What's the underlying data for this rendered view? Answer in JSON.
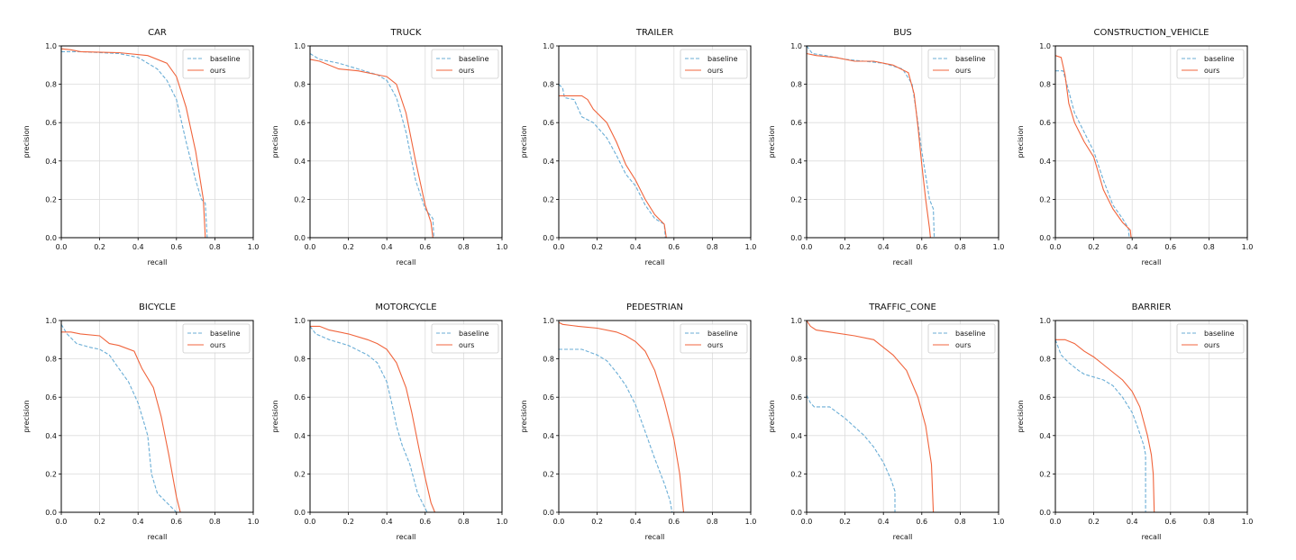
{
  "chart_data": [
    {
      "type": "line",
      "title": "CAR",
      "xlabel": "recall",
      "ylabel": "precision",
      "xlim": [
        0,
        1
      ],
      "ylim": [
        0,
        1
      ],
      "grid": true,
      "legend": "top-right",
      "series": [
        {
          "name": "baseline",
          "color": "#6baed6",
          "style": "dashed",
          "x": [
            0,
            0.1,
            0.3,
            0.4,
            0.5,
            0.55,
            0.6,
            0.65,
            0.7,
            0.73,
            0.75,
            0.76
          ],
          "y": [
            0.97,
            0.97,
            0.96,
            0.94,
            0.88,
            0.82,
            0.72,
            0.5,
            0.3,
            0.2,
            0.18,
            0
          ]
        },
        {
          "name": "ours",
          "color": "#f0643c",
          "style": "solid",
          "x": [
            0,
            0.05,
            0.1,
            0.3,
            0.45,
            0.55,
            0.6,
            0.65,
            0.7,
            0.74,
            0.75
          ],
          "y": [
            0.985,
            0.98,
            0.97,
            0.965,
            0.95,
            0.91,
            0.84,
            0.68,
            0.45,
            0.2,
            0
          ]
        }
      ]
    },
    {
      "type": "line",
      "title": "TRUCK",
      "xlabel": "recall",
      "ylabel": "precision",
      "xlim": [
        0,
        1
      ],
      "ylim": [
        0,
        1
      ],
      "grid": true,
      "legend": "top-right",
      "series": [
        {
          "name": "baseline",
          "color": "#6baed6",
          "style": "dashed",
          "x": [
            0,
            0.05,
            0.15,
            0.25,
            0.35,
            0.4,
            0.45,
            0.5,
            0.55,
            0.6,
            0.64,
            0.645
          ],
          "y": [
            0.96,
            0.93,
            0.91,
            0.88,
            0.85,
            0.82,
            0.73,
            0.55,
            0.3,
            0.15,
            0.1,
            0
          ]
        },
        {
          "name": "ours",
          "color": "#f0643c",
          "style": "solid",
          "x": [
            0,
            0.05,
            0.15,
            0.25,
            0.35,
            0.4,
            0.45,
            0.5,
            0.55,
            0.6,
            0.63,
            0.64
          ],
          "y": [
            0.93,
            0.92,
            0.88,
            0.87,
            0.85,
            0.84,
            0.8,
            0.65,
            0.4,
            0.17,
            0.08,
            0
          ]
        }
      ]
    },
    {
      "type": "line",
      "title": "TRAILER",
      "xlabel": "recall",
      "ylabel": "precision",
      "xlim": [
        0,
        1
      ],
      "ylim": [
        0,
        1
      ],
      "grid": true,
      "legend": "top-right",
      "series": [
        {
          "name": "baseline",
          "color": "#6baed6",
          "style": "dashed",
          "x": [
            0,
            0.02,
            0.03,
            0.08,
            0.12,
            0.18,
            0.25,
            0.3,
            0.35,
            0.4,
            0.45,
            0.5,
            0.55,
            0.555
          ],
          "y": [
            0.8,
            0.78,
            0.73,
            0.72,
            0.63,
            0.6,
            0.52,
            0.43,
            0.33,
            0.27,
            0.17,
            0.1,
            0.07,
            0
          ]
        },
        {
          "name": "ours",
          "color": "#f0643c",
          "style": "solid",
          "x": [
            0,
            0.12,
            0.15,
            0.18,
            0.25,
            0.3,
            0.35,
            0.4,
            0.45,
            0.5,
            0.55,
            0.56
          ],
          "y": [
            0.74,
            0.74,
            0.72,
            0.67,
            0.6,
            0.5,
            0.38,
            0.3,
            0.2,
            0.12,
            0.07,
            0
          ]
        }
      ]
    },
    {
      "type": "line",
      "title": "BUS",
      "xlabel": "recall",
      "ylabel": "precision",
      "xlim": [
        0,
        1
      ],
      "ylim": [
        0,
        1
      ],
      "grid": true,
      "legend": "top-right",
      "series": [
        {
          "name": "baseline",
          "color": "#6baed6",
          "style": "dashed",
          "x": [
            0,
            0.03,
            0.1,
            0.2,
            0.3,
            0.4,
            0.5,
            0.55,
            0.58,
            0.6,
            0.64,
            0.66,
            0.665
          ],
          "y": [
            1.0,
            0.96,
            0.95,
            0.93,
            0.92,
            0.91,
            0.88,
            0.8,
            0.6,
            0.45,
            0.2,
            0.15,
            0
          ]
        },
        {
          "name": "ours",
          "color": "#f0643c",
          "style": "solid",
          "x": [
            0,
            0.05,
            0.15,
            0.25,
            0.35,
            0.45,
            0.53,
            0.56,
            0.58,
            0.6,
            0.62,
            0.64,
            0.645
          ],
          "y": [
            0.96,
            0.95,
            0.94,
            0.92,
            0.92,
            0.9,
            0.86,
            0.75,
            0.58,
            0.38,
            0.2,
            0.05,
            0
          ]
        }
      ]
    },
    {
      "type": "line",
      "title": "CONSTRUCTION_VEHICLE",
      "xlabel": "recall",
      "ylabel": "precision",
      "xlim": [
        0,
        1
      ],
      "ylim": [
        0,
        1
      ],
      "grid": true,
      "legend": "top-right",
      "series": [
        {
          "name": "baseline",
          "color": "#6baed6",
          "style": "dashed",
          "x": [
            0,
            0.04,
            0.06,
            0.1,
            0.15,
            0.2,
            0.25,
            0.3,
            0.35,
            0.38,
            0.385
          ],
          "y": [
            0.87,
            0.87,
            0.8,
            0.65,
            0.55,
            0.45,
            0.3,
            0.17,
            0.1,
            0.05,
            0
          ]
        },
        {
          "name": "ours",
          "color": "#f0643c",
          "style": "solid",
          "x": [
            0,
            0.03,
            0.05,
            0.07,
            0.1,
            0.15,
            0.2,
            0.25,
            0.3,
            0.35,
            0.39,
            0.395
          ],
          "y": [
            0.95,
            0.94,
            0.85,
            0.7,
            0.6,
            0.5,
            0.42,
            0.25,
            0.15,
            0.08,
            0.04,
            0
          ]
        }
      ]
    },
    {
      "type": "line",
      "title": "BICYCLE",
      "xlabel": "recall",
      "ylabel": "precision",
      "xlim": [
        0,
        1
      ],
      "ylim": [
        0,
        1
      ],
      "grid": true,
      "legend": "top-right",
      "series": [
        {
          "name": "baseline",
          "color": "#6baed6",
          "style": "dashed",
          "x": [
            0,
            0.03,
            0.08,
            0.15,
            0.2,
            0.25,
            0.3,
            0.35,
            0.4,
            0.43,
            0.45,
            0.47,
            0.5,
            0.55,
            0.6
          ],
          "y": [
            0.98,
            0.93,
            0.88,
            0.86,
            0.85,
            0.82,
            0.75,
            0.68,
            0.57,
            0.47,
            0.4,
            0.2,
            0.1,
            0.05,
            0
          ]
        },
        {
          "name": "ours",
          "color": "#f0643c",
          "style": "solid",
          "x": [
            0,
            0.05,
            0.1,
            0.2,
            0.25,
            0.3,
            0.38,
            0.42,
            0.48,
            0.52,
            0.56,
            0.6,
            0.62
          ],
          "y": [
            0.94,
            0.94,
            0.93,
            0.92,
            0.88,
            0.87,
            0.84,
            0.75,
            0.65,
            0.5,
            0.3,
            0.08,
            0
          ]
        }
      ]
    },
    {
      "type": "line",
      "title": "MOTORCYCLE",
      "xlabel": "recall",
      "ylabel": "precision",
      "xlim": [
        0,
        1
      ],
      "ylim": [
        0,
        1
      ],
      "grid": true,
      "legend": "top-right",
      "series": [
        {
          "name": "baseline",
          "color": "#6baed6",
          "style": "dashed",
          "x": [
            0,
            0.03,
            0.1,
            0.2,
            0.3,
            0.35,
            0.4,
            0.43,
            0.45,
            0.48,
            0.52,
            0.56,
            0.6,
            0.61
          ],
          "y": [
            0.97,
            0.93,
            0.9,
            0.87,
            0.82,
            0.78,
            0.68,
            0.55,
            0.45,
            0.35,
            0.25,
            0.1,
            0.02,
            0
          ]
        },
        {
          "name": "ours",
          "color": "#f0643c",
          "style": "solid",
          "x": [
            0,
            0.05,
            0.1,
            0.2,
            0.3,
            0.35,
            0.4,
            0.45,
            0.5,
            0.53,
            0.57,
            0.6,
            0.63,
            0.65
          ],
          "y": [
            0.97,
            0.97,
            0.95,
            0.93,
            0.9,
            0.88,
            0.85,
            0.78,
            0.65,
            0.52,
            0.32,
            0.18,
            0.05,
            0
          ]
        }
      ]
    },
    {
      "type": "line",
      "title": "PEDESTRIAN",
      "xlabel": "recall",
      "ylabel": "precision",
      "xlim": [
        0,
        1
      ],
      "ylim": [
        0,
        1
      ],
      "grid": true,
      "legend": "top-right",
      "series": [
        {
          "name": "baseline",
          "color": "#6baed6",
          "style": "dashed",
          "x": [
            0,
            0.12,
            0.2,
            0.25,
            0.3,
            0.35,
            0.4,
            0.45,
            0.5,
            0.55,
            0.58,
            0.59
          ],
          "y": [
            0.85,
            0.85,
            0.82,
            0.79,
            0.73,
            0.66,
            0.56,
            0.42,
            0.28,
            0.15,
            0.06,
            0
          ]
        },
        {
          "name": "ours",
          "color": "#f0643c",
          "style": "solid",
          "x": [
            0,
            0.02,
            0.1,
            0.2,
            0.3,
            0.35,
            0.4,
            0.45,
            0.5,
            0.55,
            0.6,
            0.63,
            0.645,
            0.65
          ],
          "y": [
            0.99,
            0.98,
            0.97,
            0.96,
            0.94,
            0.92,
            0.89,
            0.84,
            0.74,
            0.58,
            0.38,
            0.2,
            0.05,
            0
          ]
        }
      ]
    },
    {
      "type": "line",
      "title": "TRAFFIC_CONE",
      "xlabel": "recall",
      "ylabel": "precision",
      "xlim": [
        0,
        1
      ],
      "ylim": [
        0,
        1
      ],
      "grid": true,
      "legend": "top-right",
      "series": [
        {
          "name": "baseline",
          "color": "#6baed6",
          "style": "dashed",
          "x": [
            0,
            0.02,
            0.04,
            0.12,
            0.2,
            0.3,
            0.35,
            0.4,
            0.44,
            0.46,
            0.46
          ],
          "y": [
            0.61,
            0.57,
            0.55,
            0.55,
            0.49,
            0.4,
            0.34,
            0.26,
            0.17,
            0.11,
            0
          ]
        },
        {
          "name": "ours",
          "color": "#f0643c",
          "style": "solid",
          "x": [
            0,
            0.02,
            0.05,
            0.12,
            0.25,
            0.35,
            0.4,
            0.45,
            0.52,
            0.58,
            0.62,
            0.65,
            0.66
          ],
          "y": [
            1.0,
            0.97,
            0.95,
            0.94,
            0.92,
            0.9,
            0.86,
            0.82,
            0.74,
            0.6,
            0.45,
            0.25,
            0
          ]
        }
      ]
    },
    {
      "type": "line",
      "title": "BARRIER",
      "xlabel": "recall",
      "ylabel": "precision",
      "xlim": [
        0,
        1
      ],
      "ylim": [
        0,
        1
      ],
      "grid": true,
      "legend": "top-right",
      "series": [
        {
          "name": "baseline",
          "color": "#6baed6",
          "style": "dashed",
          "x": [
            0,
            0.03,
            0.07,
            0.12,
            0.15,
            0.25,
            0.3,
            0.35,
            0.4,
            0.43,
            0.46,
            0.47,
            0.47
          ],
          "y": [
            0.9,
            0.82,
            0.78,
            0.74,
            0.72,
            0.69,
            0.66,
            0.6,
            0.52,
            0.44,
            0.35,
            0.3,
            0
          ]
        },
        {
          "name": "ours",
          "color": "#f0643c",
          "style": "solid",
          "x": [
            0,
            0.05,
            0.1,
            0.15,
            0.2,
            0.25,
            0.3,
            0.35,
            0.4,
            0.44,
            0.48,
            0.5,
            0.51,
            0.515
          ],
          "y": [
            0.9,
            0.9,
            0.88,
            0.84,
            0.81,
            0.77,
            0.73,
            0.69,
            0.63,
            0.55,
            0.4,
            0.3,
            0.2,
            0
          ]
        }
      ]
    }
  ],
  "ticks": [
    "0.0",
    "0.2",
    "0.4",
    "0.6",
    "0.8",
    "1.0"
  ]
}
